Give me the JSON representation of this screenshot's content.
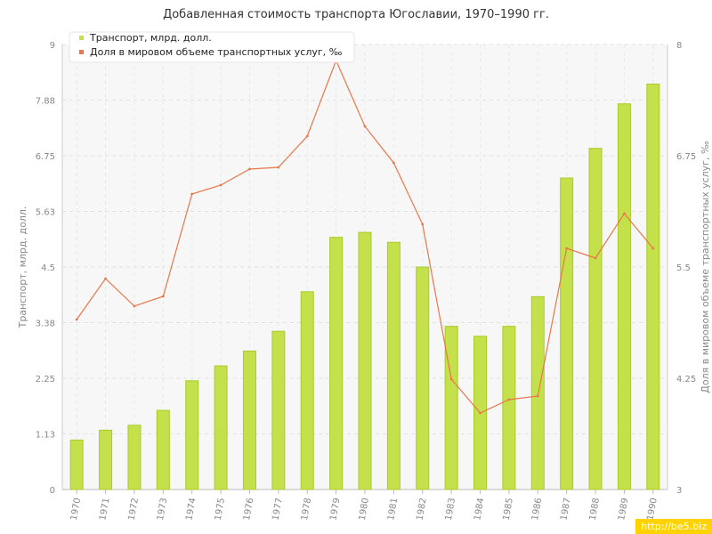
{
  "chart_data": {
    "type": "bar",
    "title": "Добавленная стоимость транспорта Югославии, 1970–1990 гг.",
    "categories": [
      "1970",
      "1971",
      "1972",
      "1973",
      "1974",
      "1975",
      "1976",
      "1977",
      "1978",
      "1979",
      "1980",
      "1981",
      "1982",
      "1983",
      "1984",
      "1985",
      "1986",
      "1987",
      "1988",
      "1989",
      "1990"
    ],
    "series": [
      {
        "name": "Транспорт, млрд. долл.",
        "type": "bar",
        "axis": "left",
        "color": "#c4e04a",
        "values": [
          1.0,
          1.2,
          1.3,
          1.6,
          2.2,
          2.5,
          2.8,
          3.2,
          4.0,
          5.1,
          5.2,
          5.0,
          4.5,
          3.3,
          3.1,
          3.3,
          3.9,
          6.3,
          6.9,
          7.8,
          8.2
        ]
      },
      {
        "name": "Доля в мировом объеме транспортных услуг, ‰",
        "type": "line",
        "axis": "right",
        "color": "#e8774a",
        "values": [
          4.91,
          5.37,
          5.06,
          5.17,
          6.32,
          6.42,
          6.6,
          6.62,
          6.97,
          7.82,
          7.08,
          6.67,
          5.98,
          4.24,
          3.86,
          4.01,
          4.05,
          5.71,
          5.6,
          6.1,
          5.71
        ]
      }
    ],
    "ylabel": "Транспорт, млрд. долл.",
    "ylabel_right": "Доля в мировом объеме транспортных услуг, ‰",
    "ylim": [
      0,
      9
    ],
    "ylim_right": [
      3,
      8
    ],
    "yticks": [
      "0",
      "1.13",
      "2.25",
      "3.38",
      "4.5",
      "5.63",
      "6.75",
      "7.88",
      "9"
    ],
    "yticks_right": [
      "3",
      "4.25",
      "5.5",
      "6.75",
      "8"
    ],
    "grid": true,
    "legend_position": "top-left"
  },
  "watermark": "http://be5.biz"
}
